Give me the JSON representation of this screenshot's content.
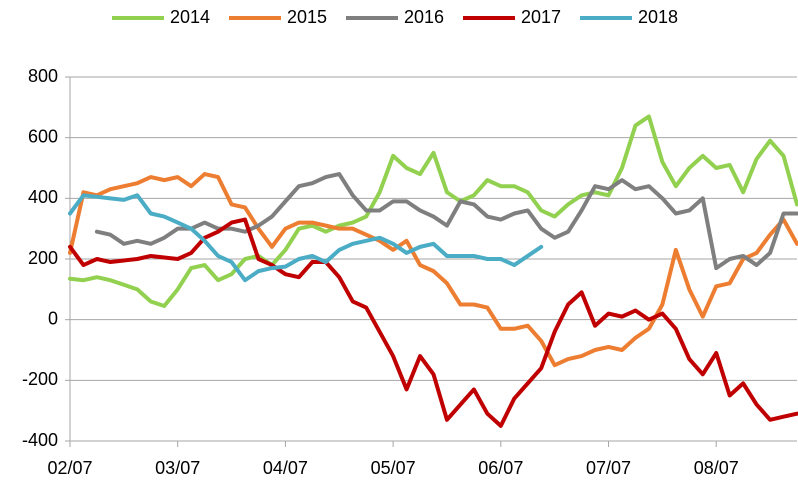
{
  "chart_data": {
    "type": "line",
    "categories": [
      "02/07",
      null,
      null,
      null,
      null,
      null,
      null,
      null,
      "03/07",
      null,
      null,
      null,
      null,
      null,
      null,
      null,
      "04/07",
      null,
      null,
      null,
      null,
      null,
      null,
      null,
      "05/07",
      null,
      null,
      null,
      null,
      null,
      null,
      null,
      "06/07",
      null,
      null,
      null,
      null,
      null,
      null,
      null,
      "07/07",
      null,
      null,
      null,
      null,
      null,
      null,
      null,
      "08/07",
      null,
      null,
      null,
      null,
      null,
      null
    ],
    "ylim": [
      -400,
      800
    ],
    "yticks": [
      -400,
      -200,
      0,
      200,
      400,
      600,
      800
    ],
    "grid": true,
    "legend": "top",
    "series": [
      {
        "name": "2014",
        "color": "#92d050",
        "values": [
          135,
          130,
          140,
          130,
          115,
          100,
          60,
          45,
          100,
          170,
          180,
          130,
          150,
          200,
          210,
          180,
          230,
          300,
          310,
          290,
          310,
          320,
          340,
          420,
          540,
          500,
          480,
          550,
          420,
          390,
          410,
          460,
          440,
          440,
          420,
          360,
          340,
          380,
          410,
          420,
          410,
          500,
          640,
          670,
          520,
          440,
          500,
          540,
          500,
          510,
          420,
          530,
          590,
          540,
          380
        ]
      },
      {
        "name": "2015",
        "color": "#ed7d31",
        "values": [
          220,
          420,
          410,
          430,
          440,
          450,
          470,
          460,
          470,
          440,
          480,
          470,
          380,
          370,
          300,
          240,
          300,
          320,
          320,
          310,
          300,
          300,
          280,
          260,
          230,
          260,
          180,
          160,
          120,
          50,
          50,
          40,
          -30,
          -30,
          -20,
          -70,
          -150,
          -130,
          -120,
          -100,
          -90,
          -100,
          -60,
          -30,
          50,
          230,
          100,
          10,
          110,
          120,
          200,
          220,
          280,
          330,
          250
        ]
      },
      {
        "name": "2016",
        "color": "#7f7f7f",
        "values": [
          null,
          null,
          290,
          280,
          250,
          260,
          250,
          270,
          300,
          300,
          320,
          300,
          300,
          290,
          310,
          340,
          390,
          440,
          450,
          470,
          480,
          410,
          360,
          360,
          390,
          390,
          360,
          340,
          310,
          390,
          380,
          340,
          330,
          350,
          360,
          300,
          270,
          290,
          360,
          440,
          430,
          460,
          430,
          440,
          400,
          350,
          360,
          400,
          170,
          200,
          210,
          180,
          220,
          350,
          350
        ]
      },
      {
        "name": "2017",
        "color": "#c00000",
        "values": [
          240,
          180,
          200,
          190,
          195,
          200,
          210,
          205,
          200,
          220,
          270,
          290,
          320,
          330,
          200,
          180,
          150,
          140,
          190,
          190,
          140,
          60,
          40,
          -40,
          -120,
          -230,
          -120,
          -180,
          -330,
          -280,
          -230,
          -310,
          -350,
          -260,
          -210,
          -160,
          -40,
          50,
          90,
          -20,
          20,
          10,
          30,
          0,
          20,
          -30,
          -130,
          -180,
          -110,
          -250,
          -210,
          -280,
          -330,
          -320,
          -310
        ]
      },
      {
        "name": "2018",
        "color": "#4bacc6",
        "values": [
          350,
          410,
          405,
          400,
          395,
          410,
          350,
          340,
          320,
          300,
          260,
          210,
          190,
          130,
          160,
          170,
          175,
          200,
          210,
          190,
          230,
          250,
          260,
          270,
          250,
          220,
          240,
          250,
          210,
          210,
          210,
          200,
          200,
          180,
          210,
          240,
          null,
          null,
          null,
          null,
          null,
          null,
          null,
          null,
          null,
          null,
          null,
          null,
          null,
          null,
          null,
          null,
          null,
          null,
          null
        ]
      }
    ]
  }
}
